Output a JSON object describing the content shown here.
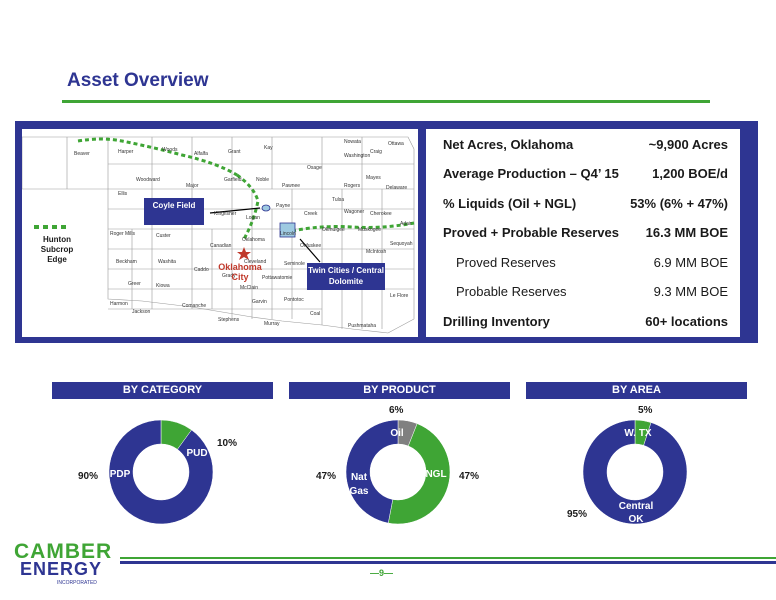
{
  "header": {
    "title": "Asset Overview"
  },
  "map": {
    "legend_label": "Hunton Subcrop Edge",
    "callouts": {
      "coyle": "Coyle Field",
      "twin_cities": "Twin Cities / Central Dolomite"
    },
    "city_label": "Oklahoma City",
    "counties": [
      "Beaver",
      "Harper",
      "Woods",
      "Alfalfa",
      "Grant",
      "Kay",
      "Nowata",
      "Craig",
      "Ottawa",
      "Osage",
      "Washington",
      "Woodward",
      "Major",
      "Garfield",
      "Noble",
      "Pawnee",
      "Rogers",
      "Mayes",
      "Delaware",
      "Ellis",
      "Kingfisher",
      "Logan",
      "Payne",
      "Tulsa",
      "Creek",
      "Wagoner",
      "Cherokee",
      "Adair",
      "Roger Mills",
      "Custer",
      "Canadian",
      "Oklahoma",
      "Lincoln",
      "Okmulgee",
      "Muskogee",
      "Sequoyah",
      "Beckham",
      "Washita",
      "Caddo",
      "Grady",
      "Cleveland",
      "Seminole",
      "Okfuskee",
      "McIntosh",
      "Kiowa",
      "Greer",
      "Comanche",
      "McClain",
      "Pottawatomie",
      "Garvin",
      "Pontotoc",
      "Harmon",
      "Jackson",
      "Stephens",
      "Murray",
      "Coal",
      "Pushmataha",
      "Le Flore"
    ]
  },
  "facts": [
    {
      "label": "Net Acres, Oklahoma",
      "value": "~9,900 Acres",
      "sub": false
    },
    {
      "label": "Average Production – Q4’ 15",
      "value": "1,200 BOE/d",
      "sub": false
    },
    {
      "label": "% Liquids (Oil + NGL)",
      "value": "53% (6% + 47%)",
      "sub": false
    },
    {
      "label": "Proved + Probable Reserves",
      "value": "16.3 MM BOE",
      "sub": false
    },
    {
      "label": "Proved Reserves",
      "value": "6.9 MM BOE",
      "sub": true
    },
    {
      "label": "Probable Reserves",
      "value": "9.3 MM BOE",
      "sub": true
    },
    {
      "label": "Drilling Inventory",
      "value": "60+ locations",
      "sub": false
    }
  ],
  "charts": {
    "category": {
      "header": "BY CATEGORY",
      "labels": [
        "PDP",
        "PUD"
      ],
      "pcts": [
        "90%",
        "10%"
      ]
    },
    "product": {
      "header": "BY PRODUCT",
      "labels": [
        "Oil",
        "NGL",
        "Nat Gas"
      ],
      "pcts": [
        "6%",
        "47%",
        "47%"
      ]
    },
    "area": {
      "header": "BY AREA",
      "labels": [
        "W. TX",
        "Central OK"
      ],
      "pcts": [
        "5%",
        "95%"
      ]
    }
  },
  "chart_data": [
    {
      "type": "pie",
      "title": "BY CATEGORY",
      "categories": [
        "PUD",
        "PDP"
      ],
      "values": [
        10,
        90
      ],
      "colors": [
        "#3fa535",
        "#2e3592"
      ]
    },
    {
      "type": "pie",
      "title": "BY PRODUCT",
      "categories": [
        "Oil",
        "NGL",
        "Nat Gas"
      ],
      "values": [
        6,
        47,
        47
      ],
      "colors": [
        "#808080",
        "#3fa535",
        "#2e3592"
      ]
    },
    {
      "type": "pie",
      "title": "BY AREA",
      "categories": [
        "W. TX",
        "Central OK"
      ],
      "values": [
        5,
        95
      ],
      "colors": [
        "#3fa535",
        "#2e3592"
      ]
    }
  ],
  "footer": {
    "page_number": "—9—",
    "logo_top": "CAMBER",
    "logo_bottom": "ENERGY",
    "logo_sub": "INCORPORATED"
  },
  "colors": {
    "brand_blue": "#2e3592",
    "brand_green": "#3fa535",
    "oil_grey": "#808080"
  }
}
